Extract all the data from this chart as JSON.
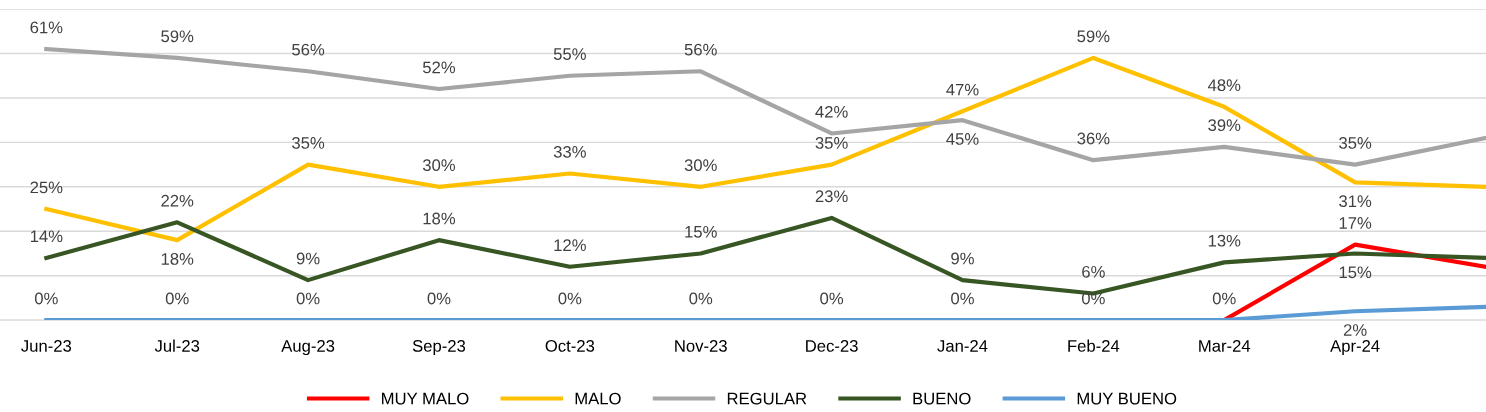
{
  "chart_data": {
    "type": "line",
    "categories": [
      "Jun-23",
      "Jul-23",
      "Aug-23",
      "Sep-23",
      "Oct-23",
      "Nov-23",
      "Dec-23",
      "Jan-24",
      "Feb-24",
      "Mar-24",
      "Apr-24",
      null
    ],
    "series": [
      {
        "name": "MUY MALO",
        "color": "#ff0000",
        "values": [
          null,
          null,
          null,
          null,
          null,
          null,
          null,
          null,
          null,
          0,
          17,
          12
        ],
        "value_labels": [
          null,
          null,
          null,
          null,
          null,
          null,
          null,
          null,
          null,
          null,
          "17%",
          null
        ]
      },
      {
        "name": "MALO",
        "color": "#ffc000",
        "values": [
          25,
          18,
          35,
          30,
          33,
          30,
          35,
          47,
          59,
          48,
          31,
          30
        ],
        "value_labels": [
          "25%",
          "18%",
          "35%",
          "30%",
          "33%",
          "30%",
          "35%",
          "47%",
          "59%",
          "48%",
          "31%",
          null
        ]
      },
      {
        "name": "REGULAR",
        "color": "#a5a5a5",
        "values": [
          61,
          59,
          56,
          52,
          55,
          56,
          42,
          45,
          36,
          39,
          35,
          41
        ],
        "value_labels": [
          "61%",
          "59%",
          "56%",
          "52%",
          "55%",
          "56%",
          "42%",
          "45%",
          "36%",
          "39%",
          "35%",
          null
        ]
      },
      {
        "name": "BUENO",
        "color": "#375623",
        "values": [
          14,
          22,
          9,
          18,
          12,
          15,
          23,
          9,
          6,
          13,
          15,
          14
        ],
        "value_labels": [
          "14%",
          "22%",
          "9%",
          "18%",
          "12%",
          "15%",
          "23%",
          "9%",
          "6%",
          "13%",
          "15%",
          null
        ]
      },
      {
        "name": "MUY BUENO",
        "color": "#5b9bd5",
        "values": [
          0,
          0,
          0,
          0,
          0,
          0,
          0,
          0,
          0,
          0,
          2,
          3
        ],
        "value_labels": [
          "0%",
          "0%",
          "0%",
          "0%",
          "0%",
          "0%",
          "0%",
          "0%",
          "0%",
          "0%",
          "2%",
          null
        ]
      }
    ],
    "ylim": [
      0,
      70
    ],
    "yticks": [
      {
        "value": 0,
        "label": null
      },
      {
        "value": 10,
        "label": null
      },
      {
        "value": 20,
        "label": null
      },
      {
        "value": 30,
        "label": null
      },
      {
        "value": 40,
        "label": null
      },
      {
        "value": 50,
        "label": null
      },
      {
        "value": 60,
        "label": null
      },
      {
        "value": 70,
        "label": null
      }
    ],
    "tick_labels": "x",
    "grid": "y",
    "legend": "bottom",
    "marker": "none",
    "line_style": "solid"
  }
}
